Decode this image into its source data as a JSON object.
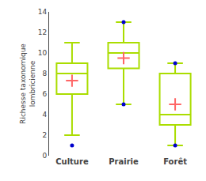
{
  "chart_data": {
    "type": "box",
    "categories": [
      "Culture",
      "Prairie",
      "Forêt"
    ],
    "boxes": [
      {
        "q1": 6.0,
        "median": 8.0,
        "q3": 9.0,
        "whislo": 2.0,
        "whishi": 11.0
      },
      {
        "q1": 8.5,
        "median": 10.0,
        "q3": 11.0,
        "whislo": 5.0,
        "whishi": 13.0
      },
      {
        "q1": 3.0,
        "median": 4.0,
        "q3": 8.0,
        "whislo": 1.0,
        "whishi": 9.0
      }
    ],
    "color": "#aadd00",
    "means": {
      "values": [
        7.3,
        9.5,
        5.0
      ],
      "color": "#ff6666",
      "marker": "cross"
    },
    "outliers": {
      "x": [
        "Culture",
        "Prairie",
        "Prairie",
        "Forêt",
        "Forêt"
      ],
      "y": [
        1.0,
        5.0,
        13.0,
        1.0,
        9.0
      ],
      "color": "#0000cc",
      "marker": "circle"
    },
    "ylabel": "Richesse taxonomique\nlombricienne",
    "ylim": [
      0,
      14
    ],
    "yticks": [
      0,
      2,
      4,
      6,
      8,
      10,
      12,
      14
    ],
    "grid": false
  }
}
